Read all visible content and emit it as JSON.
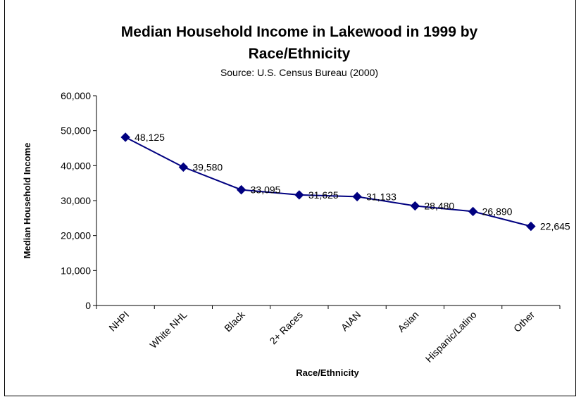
{
  "chart_data": {
    "type": "line",
    "title_line1": "Median Household Income in Lakewood in 1999 by",
    "title_line2": "Race/Ethnicity",
    "subtitle": "Source: U.S. Census Bureau (2000)",
    "xlabel": "Race/Ethnicity",
    "ylabel": "Median Household Income",
    "ylim": [
      0,
      60000
    ],
    "yticks": [
      "0",
      "10,000",
      "20,000",
      "30,000",
      "40,000",
      "50,000",
      "60,000"
    ],
    "ytick_values": [
      0,
      10000,
      20000,
      30000,
      40000,
      50000,
      60000
    ],
    "categories": [
      "NHPI",
      "White NHL",
      "Black",
      "2+ Races",
      "AIAN",
      "Asian",
      "Hispanic/Latino",
      "Other"
    ],
    "values": [
      48125,
      39580,
      33095,
      31625,
      31133,
      28480,
      26890,
      22645
    ],
    "data_labels": [
      "48,125",
      "39,580",
      "33,095",
      "31,625",
      "31,133",
      "28,480",
      "26,890",
      "22,645"
    ],
    "line_color": "#000080",
    "marker": "diamond",
    "grid": false,
    "legend": "none"
  }
}
